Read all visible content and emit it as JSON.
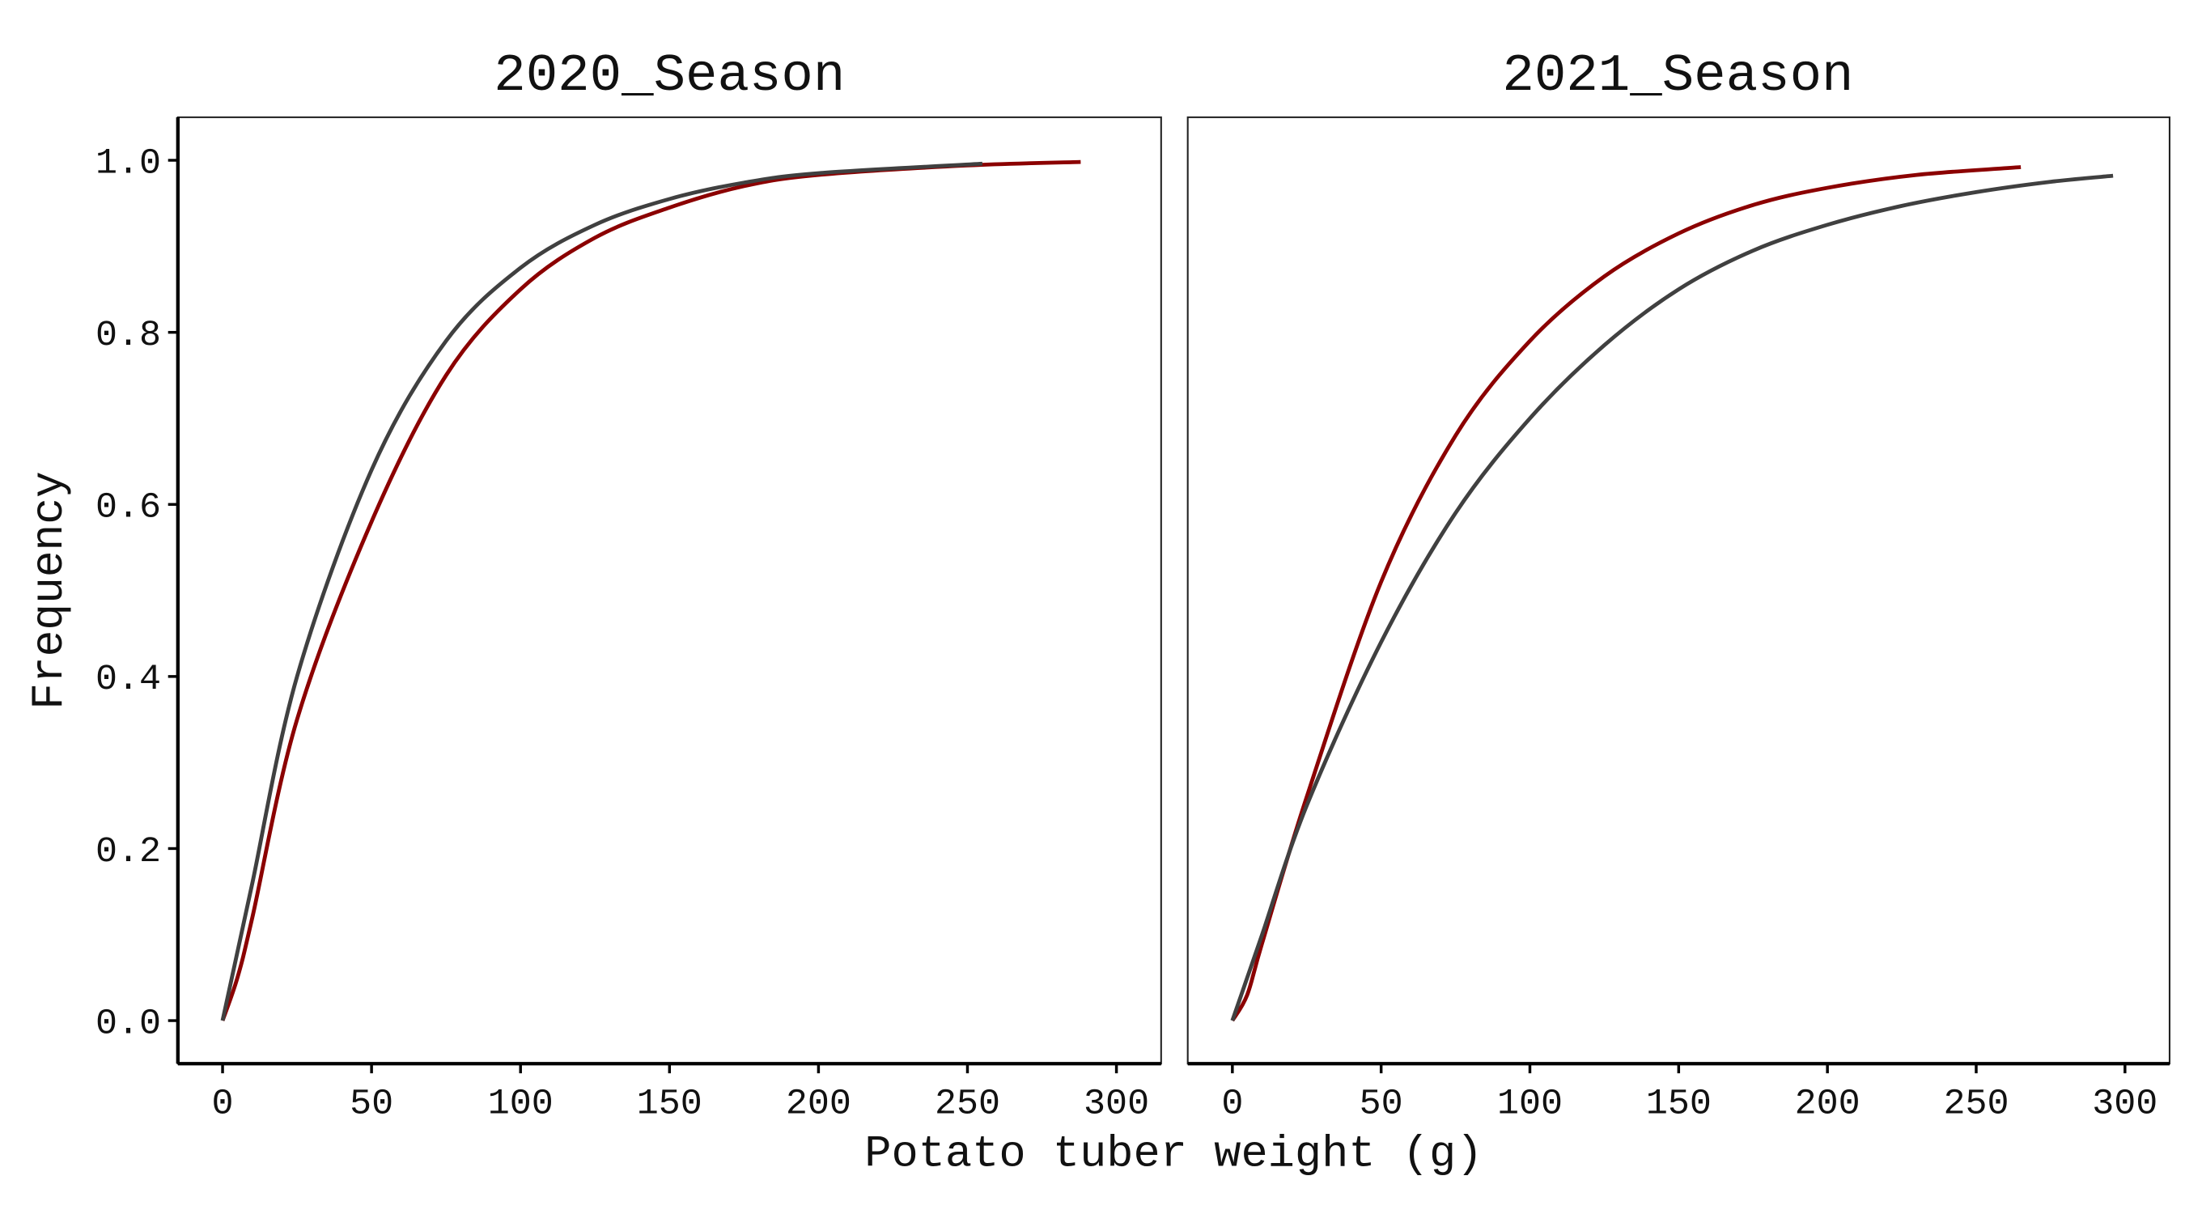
{
  "chart_data": [
    {
      "type": "line",
      "title": "2020_Season",
      "xlabel": "Potato tuber weight (g)",
      "ylabel": "Frequency",
      "xlim": [
        -15,
        315
      ],
      "ylim": [
        -0.05,
        1.05
      ],
      "xticks": [
        "0",
        "50",
        "100",
        "150",
        "200",
        "250",
        "300"
      ],
      "yticks": [
        "0.0",
        "0.2",
        "0.4",
        "0.6",
        "0.8",
        "1.0"
      ],
      "grid": false,
      "series": [
        {
          "color": "#8b0000",
          "x": [
            0,
            5,
            10,
            25,
            50,
            75,
            100,
            125,
            150,
            175,
            200,
            250,
            288
          ],
          "y": [
            0,
            0.05,
            0.12,
            0.35,
            0.58,
            0.75,
            0.85,
            0.91,
            0.945,
            0.97,
            0.983,
            0.994,
            0.998
          ]
        },
        {
          "color": "#404040",
          "x": [
            0,
            5,
            10,
            25,
            50,
            75,
            100,
            125,
            150,
            175,
            200,
            255
          ],
          "y": [
            0,
            0.08,
            0.16,
            0.4,
            0.64,
            0.79,
            0.875,
            0.925,
            0.955,
            0.974,
            0.985,
            0.996
          ]
        }
      ]
    },
    {
      "type": "line",
      "title": "2021_Season",
      "xlabel": "Potato tuber weight (g)",
      "ylabel": "Frequency",
      "xlim": [
        -15,
        315
      ],
      "ylim": [
        -0.05,
        1.05
      ],
      "xticks": [
        "0",
        "50",
        "100",
        "150",
        "200",
        "250",
        "300"
      ],
      "yticks": [
        "0.0",
        "0.2",
        "0.4",
        "0.6",
        "0.8",
        "1.0"
      ],
      "grid": false,
      "series": [
        {
          "color": "#8b0000",
          "x": [
            0,
            5,
            10,
            25,
            50,
            75,
            100,
            125,
            150,
            175,
            200,
            230,
            265
          ],
          "y": [
            0,
            0.03,
            0.09,
            0.26,
            0.51,
            0.68,
            0.79,
            0.865,
            0.915,
            0.948,
            0.968,
            0.983,
            0.992
          ]
        },
        {
          "color": "#404040",
          "x": [
            0,
            5,
            10,
            25,
            50,
            75,
            100,
            125,
            150,
            175,
            200,
            225,
            250,
            275,
            296
          ],
          "y": [
            0,
            0.05,
            0.1,
            0.25,
            0.44,
            0.59,
            0.7,
            0.785,
            0.85,
            0.895,
            0.925,
            0.947,
            0.963,
            0.975,
            0.982
          ]
        }
      ]
    }
  ]
}
